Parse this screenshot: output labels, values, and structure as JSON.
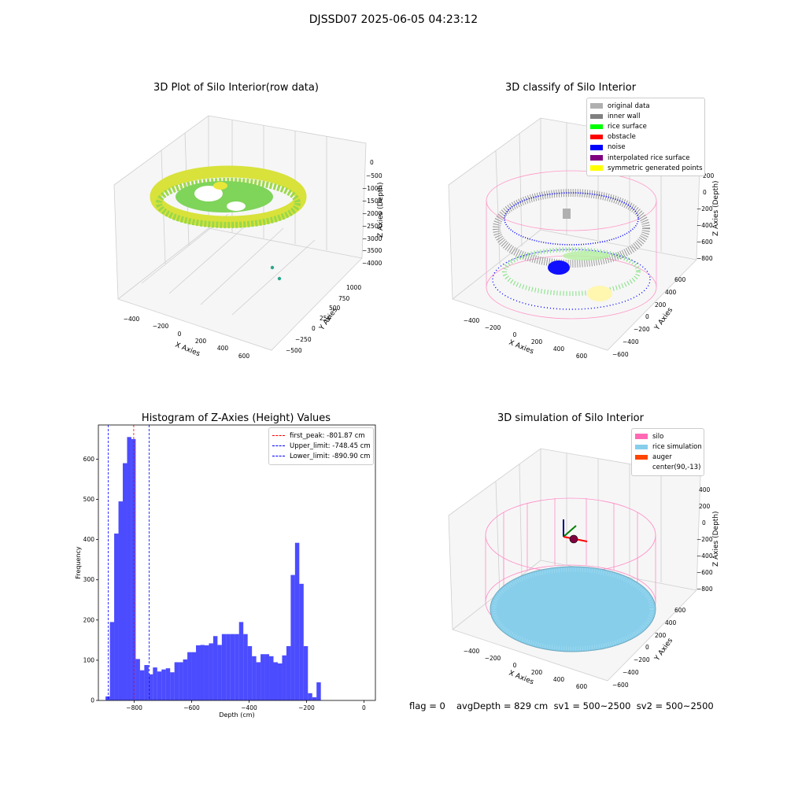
{
  "suptitle": "DJSSD07 2025-06-05 04:23:12",
  "panels": {
    "raw": {
      "title": "3D Plot of Silo Interior(row data)",
      "xlabel": "X Axies",
      "ylabel": "Y Axies",
      "zlabel": "Z Axies (Depth)",
      "xticks": [
        "−400",
        "−200",
        "0",
        "200",
        "400",
        "600"
      ],
      "yticks": [
        "1000",
        "750",
        "500",
        "250",
        "0",
        "−250",
        "−500"
      ],
      "zticks": [
        "0",
        "−500",
        "−1000",
        "−1500",
        "−2000",
        "−2500",
        "−3000",
        "−3500",
        "−4000"
      ]
    },
    "classify": {
      "title": "3D classify of Silo Interior",
      "xlabel": "X Axies",
      "ylabel": "Y Axies",
      "zlabel": "Z Axies (Depth)",
      "xticks": [
        "−400",
        "−200",
        "0",
        "200",
        "400",
        "600"
      ],
      "yticks": [
        "600",
        "400",
        "200",
        "0",
        "−200",
        "−400",
        "−600"
      ],
      "zticks": [
        "200",
        "0",
        "−200",
        "−400",
        "−600",
        "−800"
      ],
      "legend": [
        {
          "label": "original data",
          "color": "#b0b0b0"
        },
        {
          "label": "inner wall",
          "color": "#808080"
        },
        {
          "label": "rice surface",
          "color": "#00ff00"
        },
        {
          "label": "obstacle",
          "color": "#ff0000"
        },
        {
          "label": "noise",
          "color": "#0000ff"
        },
        {
          "label": "interpolated rice surface",
          "color": "#800080"
        },
        {
          "label": "symmetric generated points",
          "color": "#ffff00"
        }
      ]
    },
    "simulation": {
      "title": "3D simulation of Silo Interior",
      "xlabel": "X Axies",
      "ylabel": "Y Axies",
      "zlabel": "Z Axies (Depth)",
      "xticks": [
        "−400",
        "−200",
        "0",
        "200",
        "400",
        "600"
      ],
      "yticks": [
        "600",
        "400",
        "200",
        "0",
        "−200",
        "−400",
        "−600"
      ],
      "zticks": [
        "400",
        "200",
        "0",
        "−200",
        "−400",
        "−600",
        "−800"
      ],
      "legend": [
        {
          "label": "silo",
          "color": "#ff69b4"
        },
        {
          "label": "rice simulation",
          "color": "#87ceeb"
        },
        {
          "label": "auger",
          "color": "#ff4500"
        },
        {
          "label": "center(90,-13)",
          "color": ""
        }
      ]
    }
  },
  "footer": {
    "flag": "flag = 0",
    "stats": "avgDepth = 829 cm  sv1 = 500~2500  sv2 = 500~2500"
  },
  "chart_data": {
    "type": "bar",
    "title": "Histogram of Z-Axies (Height) Values",
    "xlabel": "Depth (cm)",
    "ylabel": "Frequency",
    "xlim": [
      -925,
      40
    ],
    "ylim": [
      0,
      685
    ],
    "xticks": [
      -800,
      -600,
      -400,
      -200,
      0
    ],
    "yticks": [
      0,
      100,
      200,
      300,
      400,
      500,
      600
    ],
    "bar_color": "#0000ff",
    "bin_start": -900,
    "bin_width": 15,
    "values": [
      10,
      195,
      415,
      495,
      590,
      655,
      650,
      103,
      75,
      88,
      65,
      82,
      72,
      77,
      80,
      70,
      95,
      95,
      102,
      120,
      120,
      137,
      138,
      137,
      142,
      160,
      138,
      165,
      165,
      165,
      165,
      195,
      165,
      135,
      110,
      95,
      115,
      115,
      110,
      95,
      92,
      112,
      135,
      312,
      392,
      290,
      135,
      18,
      8,
      45
    ],
    "vlines": [
      {
        "value": -801.87,
        "label": "first_peak: -801.87 cm",
        "color": "#ff0000"
      },
      {
        "value": -748.45,
        "label": "Upper_limit: -748.45 cm",
        "color": "#0000ff"
      },
      {
        "value": -890.9,
        "label": "Lower_limit: -890.90 cm",
        "color": "#0000ff"
      }
    ]
  }
}
